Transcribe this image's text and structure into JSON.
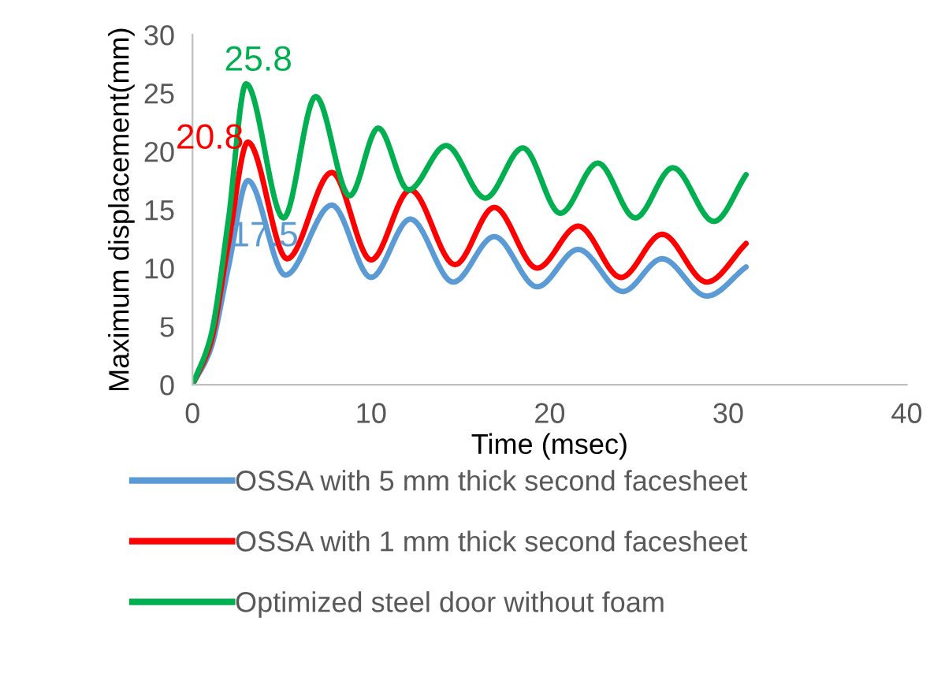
{
  "chart_data": {
    "type": "line",
    "xlabel": "Time (msec)",
    "ylabel": "Maximum displacement(mm)",
    "xlim": [
      0,
      40
    ],
    "xticks": [
      0,
      10,
      20,
      30,
      40
    ],
    "ylim": [
      0,
      30
    ],
    "yticks": [
      0,
      5,
      10,
      15,
      20,
      25,
      30
    ],
    "grid": false,
    "legend": "bottom",
    "marker": "none",
    "line_style": "solid",
    "series": [
      {
        "name": "OSSA with 5 mm thick second facesheet",
        "color": "#5b9bd5",
        "x": [
          0,
          1,
          2,
          3.1,
          5.2,
          7.8,
          10,
          12.2,
          14.6,
          16.9,
          19.3,
          21.6,
          24.1,
          26.3,
          28.8,
          31
        ],
        "values": [
          0,
          3,
          10,
          17.5,
          9.4,
          15.4,
          9.2,
          14.2,
          8.8,
          12.7,
          8.4,
          11.6,
          8.0,
          10.8,
          7.6,
          10.1
        ],
        "value_labels": [
          null,
          null,
          null,
          "17.5",
          null,
          null,
          null,
          null,
          null,
          null,
          null,
          null,
          null,
          null,
          null,
          null
        ]
      },
      {
        "name": "OSSA with 1 mm thick second facesheet",
        "color": "#ff0000",
        "x": [
          0,
          1,
          2,
          3.1,
          5.3,
          7.8,
          10,
          12.2,
          14.7,
          16.9,
          19.3,
          21.6,
          24,
          26.3,
          28.8,
          31
        ],
        "values": [
          0,
          3.5,
          12,
          20.8,
          10.8,
          18.2,
          10.7,
          16.7,
          10.3,
          15.2,
          10.0,
          13.6,
          9.2,
          12.9,
          8.8,
          12.1
        ],
        "value_labels": [
          null,
          null,
          null,
          "20.8",
          null,
          null,
          null,
          null,
          null,
          null,
          null,
          null,
          null,
          null,
          null,
          null
        ]
      },
      {
        "name": "Optimized steel door without foam",
        "color": "#00b050",
        "x": [
          0,
          1,
          2,
          3.0,
          5.1,
          6.9,
          8.8,
          10.4,
          12.1,
          14.2,
          16.4,
          18.5,
          20.6,
          22.7,
          24.8,
          26.9,
          29.2,
          31
        ],
        "values": [
          0,
          4,
          14,
          25.8,
          14.3,
          24.7,
          16.2,
          22,
          16.7,
          20.5,
          16,
          20.3,
          14.7,
          19,
          14.3,
          18.6,
          14,
          18
        ],
        "value_labels": [
          null,
          null,
          null,
          "25.8",
          null,
          null,
          null,
          null,
          null,
          null,
          null,
          null,
          null,
          null,
          null,
          null,
          null,
          null
        ]
      }
    ]
  }
}
